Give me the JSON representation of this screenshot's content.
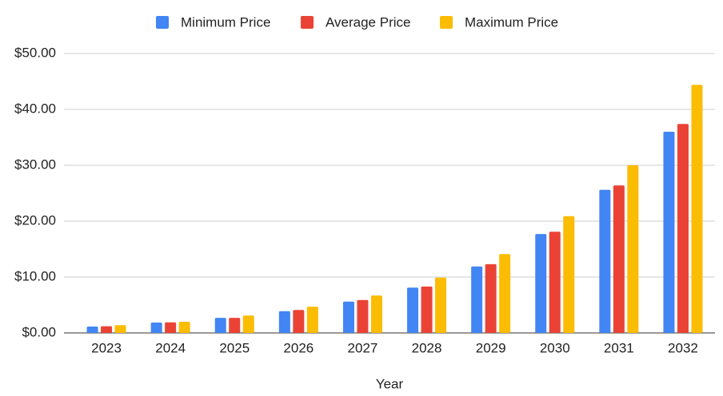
{
  "chart_data": {
    "type": "bar",
    "x_label": "Year",
    "categories": [
      "2023",
      "2024",
      "2025",
      "2026",
      "2027",
      "2028",
      "2029",
      "2030",
      "2031",
      "2032"
    ],
    "series": [
      {
        "name": "Minimum Price",
        "color": "#4285f4",
        "values": [
          1.14,
          1.86,
          2.7,
          3.9,
          5.6,
          8.1,
          11.9,
          17.7,
          25.6,
          36.0
        ]
      },
      {
        "name": "Average Price",
        "color": "#ea4335",
        "values": [
          1.2,
          1.9,
          2.7,
          4.1,
          5.9,
          8.3,
          12.3,
          18.1,
          26.4,
          37.4
        ]
      },
      {
        "name": "Maximum Price",
        "color": "#fbbc04",
        "values": [
          1.4,
          2.0,
          3.1,
          4.7,
          6.7,
          9.9,
          14.1,
          20.9,
          30.0,
          44.4
        ]
      }
    ],
    "ylim": [
      0,
      50
    ],
    "yticks": [
      {
        "value": 0,
        "label": "$0.00"
      },
      {
        "value": 10,
        "label": "$10.00"
      },
      {
        "value": 20,
        "label": "$20.00"
      },
      {
        "value": 30,
        "label": "$30.00"
      },
      {
        "value": 40,
        "label": "$40.00"
      },
      {
        "value": 50,
        "label": "$50.00"
      }
    ],
    "grid": true,
    "legend": "top"
  }
}
